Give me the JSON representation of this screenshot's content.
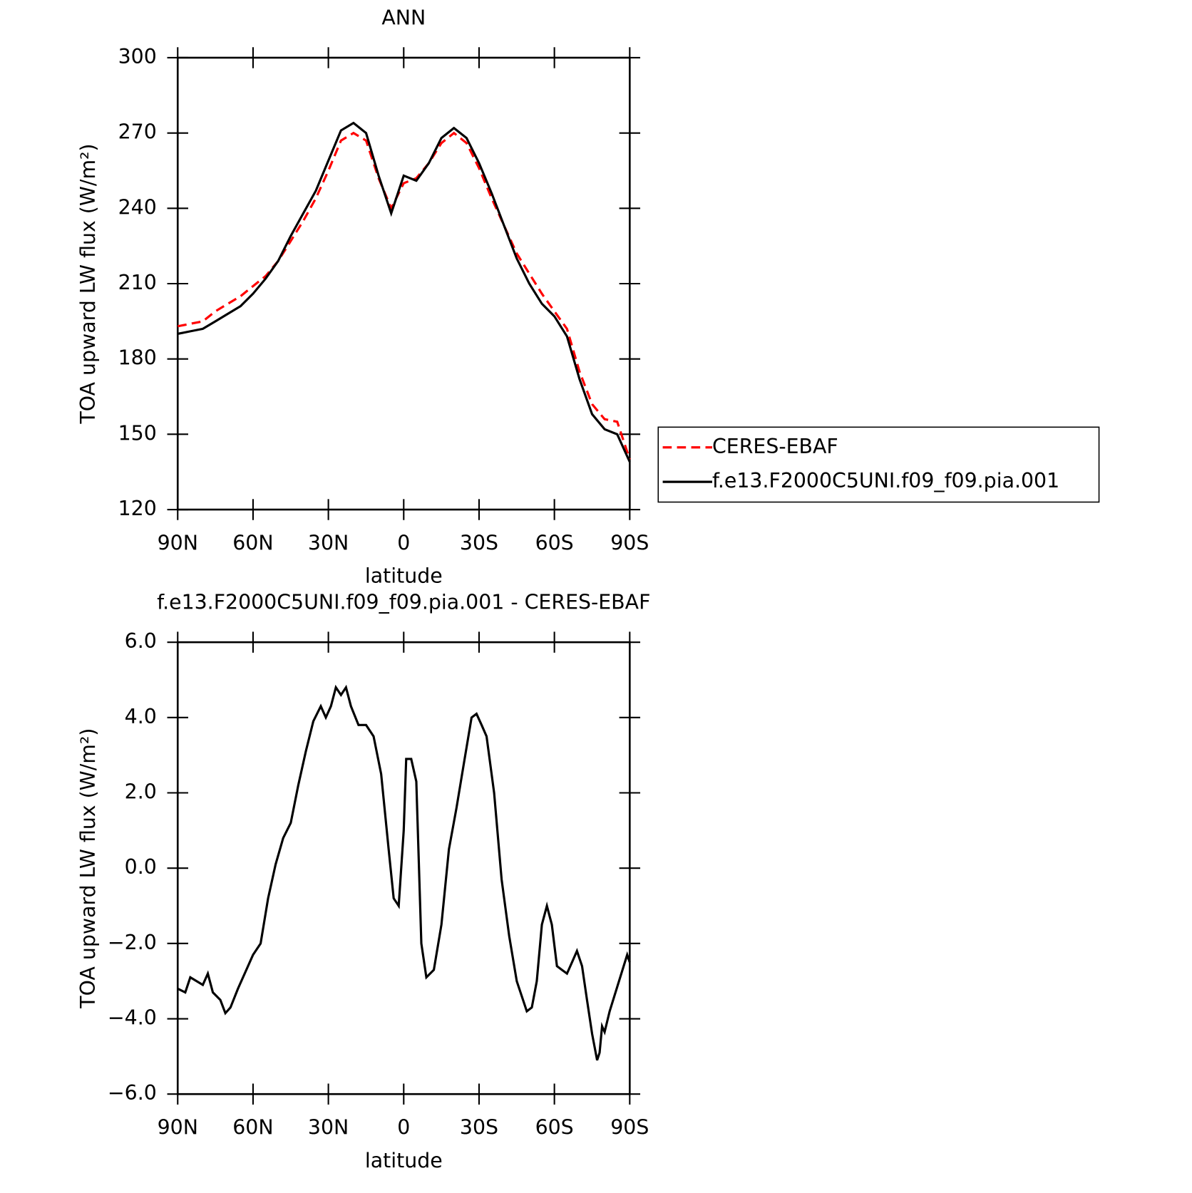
{
  "chart_data": [
    {
      "type": "line",
      "title": "ANN",
      "x_label": "latitude",
      "y_label": "TOA upward LW flux (W/m²)",
      "x": [
        90,
        85,
        80,
        75,
        70,
        65,
        60,
        55,
        50,
        45,
        40,
        35,
        30,
        25,
        20,
        15,
        10,
        5,
        0,
        -5,
        -10,
        -15,
        -20,
        -25,
        -30,
        -35,
        -40,
        -45,
        -50,
        -55,
        -60,
        -65,
        -70,
        -75,
        -80,
        -85,
        -90
      ],
      "series": [
        {
          "name": "CERES-EBAF",
          "color": "#ff0000",
          "dash": true,
          "values": [
            193,
            194,
            195,
            199,
            202,
            205,
            209,
            213,
            219,
            227,
            235,
            244,
            255,
            267,
            270,
            267,
            252,
            240,
            250,
            252,
            258,
            266,
            270,
            266,
            256,
            244,
            233,
            222,
            214,
            206,
            199,
            192,
            175,
            162,
            156,
            155,
            140
          ]
        },
        {
          "name": "f.e13.F2000C5UNI.f09_f09.pia.001",
          "color": "#000000",
          "dash": false,
          "values": [
            190,
            191,
            192,
            195,
            198,
            201,
            206,
            212,
            219,
            229,
            238,
            247,
            259,
            271,
            274,
            270,
            253,
            238,
            253,
            251,
            258,
            268,
            272,
            268,
            258,
            246,
            233,
            220,
            210,
            202,
            197,
            189,
            172,
            158,
            152,
            150,
            139
          ]
        }
      ],
      "xlim": [
        90,
        -90
      ],
      "xticks": [
        {
          "value": 90,
          "label": "90N"
        },
        {
          "value": 60,
          "label": "60N"
        },
        {
          "value": 30,
          "label": "30N"
        },
        0,
        {
          "value": -30,
          "label": "30S"
        },
        {
          "value": -60,
          "label": "60S"
        },
        {
          "value": -90,
          "label": "90S"
        }
      ],
      "ylim": [
        120,
        300
      ],
      "yticks": [
        120,
        150,
        180,
        210,
        240,
        270,
        300
      ],
      "legend": "right"
    },
    {
      "type": "line",
      "title": "f.e13.F2000C5UNI.f09_f09.pia.001 - CERES-EBAF",
      "x_label": "latitude",
      "y_label": "TOA upward LW flux (W/m²)",
      "x": [
        90,
        87,
        85,
        80,
        78,
        76,
        73,
        71,
        69,
        66,
        62,
        60,
        57,
        54,
        51,
        48,
        45,
        42,
        39,
        36,
        33,
        31,
        29,
        27,
        25,
        23,
        21,
        18,
        15,
        12,
        9,
        6,
        4,
        2,
        0,
        -1,
        -3,
        -5,
        -7,
        -9,
        -12,
        -15,
        -18,
        -21,
        -24,
        -27,
        -29,
        -31,
        -33,
        -36,
        -39,
        -42,
        -45,
        -49,
        -51,
        -53,
        -55,
        -57,
        -59,
        -61,
        -63,
        -65,
        -67,
        -69,
        -71,
        -73,
        -75,
        -77,
        -78,
        -79,
        -80,
        -82,
        -89,
        -90
      ],
      "series": [
        {
          "name": null,
          "color": "#000000",
          "dash": false,
          "values": [
            -3.2,
            -3.3,
            -2.9,
            -3.1,
            -2.8,
            -3.3,
            -3.5,
            -3.85,
            -3.7,
            -3.2,
            -2.6,
            -2.3,
            -2.0,
            -0.8,
            0.1,
            0.8,
            1.2,
            2.2,
            3.1,
            3.9,
            4.3,
            4.0,
            4.3,
            4.8,
            4.6,
            4.8,
            4.3,
            3.8,
            3.8,
            3.5,
            2.5,
            0.5,
            -0.8,
            -1.0,
            1.0,
            2.9,
            2.9,
            2.3,
            -2.0,
            -2.9,
            -2.7,
            -1.5,
            0.5,
            1.6,
            2.8,
            4.0,
            4.1,
            3.8,
            3.5,
            2.0,
            -0.3,
            -1.8,
            -3.0,
            -3.8,
            -3.7,
            -3.0,
            -1.5,
            -1.0,
            -1.5,
            -2.6,
            -2.7,
            -2.8,
            -2.5,
            -2.2,
            -2.6,
            -3.5,
            -4.4,
            -5.1,
            -4.9,
            -4.2,
            -4.35,
            -3.8,
            -2.3,
            -2.5
          ]
        }
      ],
      "xlim": [
        90,
        -90
      ],
      "xticks": [
        {
          "value": 90,
          "label": "90N"
        },
        {
          "value": 60,
          "label": "60N"
        },
        {
          "value": 30,
          "label": "30N"
        },
        0,
        {
          "value": -30,
          "label": "30S"
        },
        {
          "value": -60,
          "label": "60S"
        },
        {
          "value": -90,
          "label": "90S"
        }
      ],
      "ylim": [
        -6,
        6
      ],
      "yticks": [
        {
          "value": -6,
          "label": "−6.0"
        },
        {
          "value": -4,
          "label": "−4.0"
        },
        {
          "value": -2,
          "label": "−2.0"
        },
        {
          "value": 0,
          "label": "0.0"
        },
        {
          "value": 2,
          "label": "2.0"
        },
        {
          "value": 4,
          "label": "4.0"
        },
        {
          "value": 6,
          "label": "6.0"
        }
      ]
    }
  ]
}
